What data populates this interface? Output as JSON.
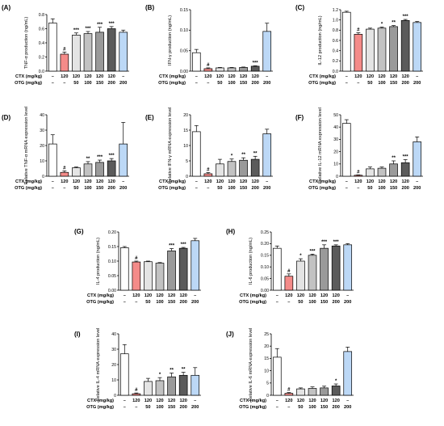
{
  "figure": {
    "group_names": [
      "CTX (mg/kg)",
      "OTG (mg/kg)"
    ],
    "colors": [
      "#ffffff",
      "#f48b89",
      "#e4e4e4",
      "#c2c2c2",
      "#9a9a9a",
      "#5b5b5b",
      "#bcd8f6"
    ]
  },
  "chart_data": [
    {
      "panel": "(A)",
      "type": "bar",
      "ylabel": "TNF-α production (ng/mL)",
      "ylim": [
        0,
        0.8
      ],
      "yticks": [
        "0.0",
        "0.2",
        "0.4",
        "0.6",
        "0.8"
      ],
      "ctx": [
        "–",
        "120",
        "120",
        "120",
        "120",
        "120",
        "–"
      ],
      "otg": [
        "–",
        "–",
        "50",
        "100",
        "150",
        "200",
        "200"
      ],
      "values": [
        0.68,
        0.24,
        0.51,
        0.53,
        0.55,
        0.6,
        0.55
      ],
      "errors": [
        0.06,
        0.03,
        0.03,
        0.03,
        0.07,
        0.03,
        0.03
      ],
      "annotations": [
        "",
        "#",
        "***",
        "***",
        "***",
        "***",
        ""
      ]
    },
    {
      "panel": "(B)",
      "type": "bar",
      "ylabel": "IFN-γ production (ng/mL)",
      "ylim": [
        0,
        0.15
      ],
      "yticks": [
        "0.00",
        "0.05",
        "0.10",
        "0.15"
      ],
      "ctx": [
        "–",
        "120",
        "120",
        "120",
        "120",
        "120",
        "–"
      ],
      "otg": [
        "–",
        "–",
        "50",
        "100",
        "150",
        "200",
        "200"
      ],
      "values": [
        0.045,
        0.006,
        0.008,
        0.008,
        0.009,
        0.012,
        0.097
      ],
      "errors": [
        0.008,
        0.002,
        0.001,
        0.001,
        0.001,
        0.001,
        0.02
      ],
      "annotations": [
        "",
        "#",
        "",
        "",
        "",
        "***",
        ""
      ]
    },
    {
      "panel": "(C)",
      "type": "bar",
      "ylabel": "IL-12 production (ng/mL)",
      "ylim": [
        0,
        1.2
      ],
      "yticks": [
        "0.0",
        "0.2",
        "0.4",
        "0.6",
        "0.8",
        "1.0",
        "1.2"
      ],
      "ctx": [
        "–",
        "120",
        "120",
        "120",
        "120",
        "120",
        "–"
      ],
      "otg": [
        "–",
        "–",
        "50",
        "100",
        "150",
        "200",
        "200"
      ],
      "values": [
        1.15,
        0.72,
        0.82,
        0.84,
        0.87,
        0.99,
        0.95
      ],
      "errors": [
        0.02,
        0.03,
        0.02,
        0.02,
        0.02,
        0.02,
        0.02
      ],
      "annotations": [
        "",
        "#",
        "",
        "*",
        "**",
        "***",
        ""
      ]
    },
    {
      "panel": "(D)",
      "type": "bar",
      "ylabel": "Relative TNF-α mRNA expression level",
      "ylim": [
        0,
        40
      ],
      "yticks": [
        "0",
        "10",
        "20",
        "30",
        "40"
      ],
      "ctx": [
        "–",
        "120",
        "120",
        "120",
        "120",
        "120",
        "–"
      ],
      "otg": [
        "–",
        "–",
        "50",
        "100",
        "150",
        "200",
        "200"
      ],
      "values": [
        21,
        2.5,
        5.5,
        8,
        9,
        10,
        21
      ],
      "errors": [
        6,
        1,
        0.5,
        1.5,
        1.5,
        1.5,
        14
      ],
      "annotations": [
        "",
        "#",
        "",
        "**",
        "***",
        "***",
        ""
      ]
    },
    {
      "panel": "(E)",
      "type": "bar",
      "ylabel": "Relative IFN-γ mRNA expression level",
      "ylim": [
        0,
        20
      ],
      "yticks": [
        "0",
        "5",
        "10",
        "15",
        "20"
      ],
      "ctx": [
        "–",
        "120",
        "120",
        "120",
        "120",
        "120",
        "–"
      ],
      "otg": [
        "–",
        "–",
        "50",
        "100",
        "150",
        "200",
        "200"
      ],
      "values": [
        14.5,
        0.8,
        4,
        4.8,
        5.2,
        5.5,
        13.8
      ],
      "errors": [
        2,
        0.4,
        1.5,
        0.8,
        0.8,
        1,
        1.5
      ],
      "annotations": [
        "",
        "#",
        "",
        "*",
        "**",
        "**",
        ""
      ]
    },
    {
      "panel": "(F)",
      "type": "bar",
      "ylabel": "Relative IL-12 mRNA expression level",
      "ylim": [
        0,
        50
      ],
      "yticks": [
        "0",
        "10",
        "20",
        "30",
        "40",
        "50"
      ],
      "ctx": [
        "–",
        "120",
        "120",
        "120",
        "120",
        "120",
        "–"
      ],
      "otg": [
        "–",
        "–",
        "50",
        "100",
        "150",
        "200",
        "200"
      ],
      "values": [
        43,
        0.8,
        6,
        6.5,
        10,
        11,
        28
      ],
      "errors": [
        3,
        0.3,
        1.5,
        1,
        2.5,
        2.5,
        4
      ],
      "annotations": [
        "",
        "#",
        "",
        "",
        "**",
        "***",
        ""
      ]
    },
    {
      "panel": "(G)",
      "type": "bar",
      "ylabel": "IL-4 production (ng/mL)",
      "ylim": [
        0,
        0.2
      ],
      "yticks": [
        "0.00",
        "0.05",
        "0.10",
        "0.15",
        "0.20"
      ],
      "ctx": [
        "–",
        "120",
        "120",
        "120",
        "120",
        "120",
        "–"
      ],
      "otg": [
        "–",
        "–",
        "50",
        "100",
        "150",
        "200",
        "200"
      ],
      "values": [
        0.146,
        0.097,
        0.098,
        0.093,
        0.135,
        0.144,
        0.17
      ],
      "errors": [
        0.004,
        0.003,
        0.002,
        0.002,
        0.008,
        0.003,
        0.008
      ],
      "annotations": [
        "",
        "#",
        "",
        "",
        "***",
        "***",
        ""
      ]
    },
    {
      "panel": "(H)",
      "type": "bar",
      "ylabel": "IL-6 production (ng/mL)",
      "ylim": [
        0,
        0.25
      ],
      "yticks": [
        "0.00",
        "0.05",
        "0.10",
        "0.15",
        "0.20",
        "0.25"
      ],
      "ctx": [
        "–",
        "120",
        "120",
        "120",
        "120",
        "120",
        "–"
      ],
      "otg": [
        "–",
        "–",
        "50",
        "100",
        "150",
        "200",
        "200"
      ],
      "values": [
        0.18,
        0.06,
        0.125,
        0.15,
        0.18,
        0.19,
        0.195
      ],
      "errors": [
        0.01,
        0.01,
        0.01,
        0.005,
        0.015,
        0.005,
        0.005
      ],
      "annotations": [
        "",
        "#",
        "*",
        "***",
        "***",
        "***",
        ""
      ]
    },
    {
      "panel": "(I)",
      "type": "bar",
      "ylabel": "Relative IL-4 mRNA expression level",
      "ylim": [
        0,
        40
      ],
      "yticks": [
        "0",
        "10",
        "20",
        "30",
        "40"
      ],
      "ctx": [
        "–",
        "120",
        "120",
        "120",
        "120",
        "120",
        "–"
      ],
      "otg": [
        "–",
        "–",
        "50",
        "100",
        "150",
        "200",
        "200"
      ],
      "values": [
        27,
        1,
        9,
        9.5,
        12,
        13,
        13
      ],
      "errors": [
        6,
        0.5,
        2,
        2,
        2.5,
        2,
        5
      ],
      "annotations": [
        "",
        "#",
        "",
        "*",
        "**",
        "**",
        ""
      ]
    },
    {
      "panel": "(J)",
      "type": "bar",
      "ylabel": "Relative IL-6 mRNA expression level",
      "ylim": [
        0,
        25
      ],
      "yticks": [
        "0",
        "5",
        "10",
        "15",
        "20",
        "25"
      ],
      "ctx": [
        "–",
        "120",
        "120",
        "120",
        "120",
        "120",
        "–"
      ],
      "otg": [
        "–",
        "–",
        "50",
        "100",
        "150",
        "200",
        "200"
      ],
      "values": [
        15.5,
        0.8,
        2.6,
        2.8,
        3,
        3.8,
        17.8
      ],
      "errors": [
        3.5,
        0.3,
        0.4,
        0.6,
        0.7,
        0.8,
        1.8
      ],
      "annotations": [
        "",
        "#",
        "",
        "",
        "",
        "*",
        ""
      ]
    }
  ]
}
